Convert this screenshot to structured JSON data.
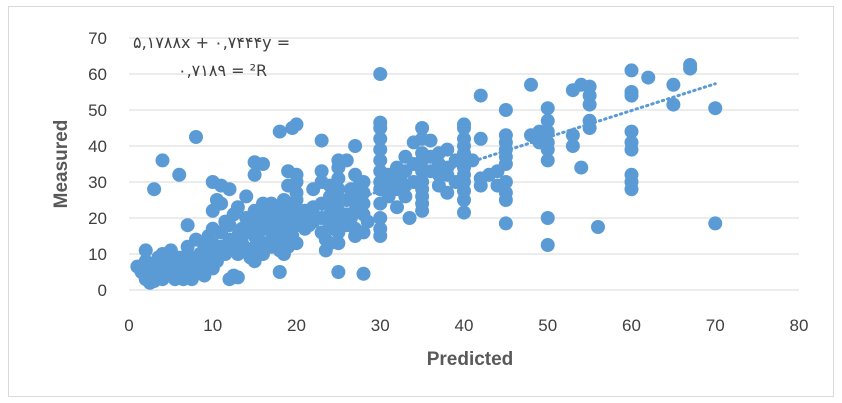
{
  "chart_data": {
    "type": "scatter",
    "title": "",
    "xlabel": "Predicted",
    "ylabel": "Measured",
    "xlim": [
      0,
      80
    ],
    "ylim": [
      0,
      70
    ],
    "x_ticks": [
      "0",
      "10",
      "20",
      "30",
      "40",
      "50",
      "60",
      "70",
      "80"
    ],
    "y_ticks": [
      "0",
      "10",
      "20",
      "30",
      "40",
      "50",
      "60",
      "70"
    ],
    "grid": "horizontal",
    "legend": "none",
    "point_color": "#5b9bd5",
    "trendline": {
      "type": "linear",
      "style": "dotted",
      "slope": 0.7444,
      "intercept": 5.1788,
      "x_range": [
        3,
        70
      ],
      "equation_text_1": "۵,۱۷۸۸x + ۰,۷۴۴۴y =",
      "equation_text_2": "۰,۷۱۸۹ = ²R"
    },
    "series": [
      {
        "points": [
          [
            1,
            6.5
          ],
          [
            1.5,
            5
          ],
          [
            2,
            3
          ],
          [
            2,
            8
          ],
          [
            2,
            11
          ],
          [
            2.5,
            2
          ],
          [
            2.5,
            4.5
          ],
          [
            3,
            6
          ],
          [
            3,
            28
          ],
          [
            3,
            2.5
          ],
          [
            3.5,
            9
          ],
          [
            3.5,
            5
          ],
          [
            4,
            7.5
          ],
          [
            4,
            3
          ],
          [
            4,
            10
          ],
          [
            4,
            36
          ],
          [
            4.5,
            6
          ],
          [
            5,
            4
          ],
          [
            5,
            8.5
          ],
          [
            5,
            11
          ],
          [
            5.5,
            3
          ],
          [
            5.5,
            6.5
          ],
          [
            6,
            5
          ],
          [
            6,
            9
          ],
          [
            6,
            32
          ],
          [
            6.5,
            3
          ],
          [
            6.5,
            7
          ],
          [
            7,
            4
          ],
          [
            7,
            10
          ],
          [
            7,
            12
          ],
          [
            7,
            18
          ],
          [
            7.5,
            6
          ],
          [
            7.5,
            3
          ],
          [
            8,
            8
          ],
          [
            8,
            14
          ],
          [
            8,
            42.5
          ],
          [
            8.5,
            5
          ],
          [
            8.5,
            10
          ],
          [
            9,
            7
          ],
          [
            9,
            12
          ],
          [
            9,
            4
          ],
          [
            9.5,
            9
          ],
          [
            9.5,
            15
          ],
          [
            10,
            6
          ],
          [
            10,
            10
          ],
          [
            10,
            13
          ],
          [
            10,
            17
          ],
          [
            10,
            22
          ],
          [
            10,
            30
          ],
          [
            10.5,
            8
          ],
          [
            10.5,
            25
          ],
          [
            11,
            12
          ],
          [
            11,
            16
          ],
          [
            11,
            24
          ],
          [
            11,
            29
          ],
          [
            11.5,
            10
          ],
          [
            11.5,
            19
          ],
          [
            12,
            3
          ],
          [
            12,
            14
          ],
          [
            12,
            18
          ],
          [
            12,
            28
          ],
          [
            12.5,
            4
          ],
          [
            12.5,
            12
          ],
          [
            12.5,
            21
          ],
          [
            13,
            10
          ],
          [
            13,
            15
          ],
          [
            13,
            3.5
          ],
          [
            13,
            23
          ],
          [
            13.5,
            13
          ],
          [
            13.5,
            17
          ],
          [
            14,
            11
          ],
          [
            14,
            16
          ],
          [
            14,
            20
          ],
          [
            14,
            26
          ],
          [
            14.5,
            9
          ],
          [
            14.5,
            18
          ],
          [
            15,
            8
          ],
          [
            15,
            12
          ],
          [
            15,
            15
          ],
          [
            15,
            22
          ],
          [
            15,
            32
          ],
          [
            15,
            35.5
          ],
          [
            15.5,
            14
          ],
          [
            15.5,
            19
          ],
          [
            16,
            10
          ],
          [
            16,
            17
          ],
          [
            16,
            20
          ],
          [
            16,
            24
          ],
          [
            16,
            35
          ],
          [
            16.5,
            13
          ],
          [
            16.5,
            22
          ],
          [
            17,
            12
          ],
          [
            17,
            16
          ],
          [
            17,
            19
          ],
          [
            17,
            24
          ],
          [
            17.5,
            15
          ],
          [
            17.5,
            21
          ],
          [
            18,
            5
          ],
          [
            18,
            11
          ],
          [
            18,
            14
          ],
          [
            18,
            18
          ],
          [
            18,
            22
          ],
          [
            18,
            44
          ],
          [
            18.5,
            10
          ],
          [
            18.5,
            16
          ],
          [
            18.5,
            25
          ],
          [
            19,
            12
          ],
          [
            19,
            17
          ],
          [
            19,
            20
          ],
          [
            19,
            29
          ],
          [
            19,
            33
          ],
          [
            19.5,
            15
          ],
          [
            19.5,
            23
          ],
          [
            19.5,
            45
          ],
          [
            20,
            13
          ],
          [
            20,
            18
          ],
          [
            20,
            21
          ],
          [
            20,
            25
          ],
          [
            20,
            27
          ],
          [
            20,
            30
          ],
          [
            20,
            32
          ],
          [
            20,
            46
          ],
          [
            21,
            17
          ],
          [
            21,
            20
          ],
          [
            21,
            22
          ],
          [
            21.5,
            18
          ],
          [
            22,
            19
          ],
          [
            22,
            21
          ],
          [
            22,
            23
          ],
          [
            22,
            28
          ],
          [
            23,
            16
          ],
          [
            23,
            20
          ],
          [
            23,
            24
          ],
          [
            23,
            30
          ],
          [
            23,
            33
          ],
          [
            23,
            41.5
          ],
          [
            23.5,
            11
          ],
          [
            23.5,
            14
          ],
          [
            24,
            13
          ],
          [
            24,
            18
          ],
          [
            24,
            21
          ],
          [
            24,
            26
          ],
          [
            24,
            29
          ],
          [
            24.5,
            17
          ],
          [
            24.5,
            24
          ],
          [
            25,
            5
          ],
          [
            25,
            13
          ],
          [
            25,
            16
          ],
          [
            25,
            19
          ],
          [
            25,
            22
          ],
          [
            25,
            25
          ],
          [
            25,
            28
          ],
          [
            25,
            31
          ],
          [
            25,
            34
          ],
          [
            25,
            36
          ],
          [
            26,
            18
          ],
          [
            26,
            21
          ],
          [
            26,
            25
          ],
          [
            26,
            36
          ],
          [
            26.5,
            20
          ],
          [
            26.5,
            28
          ],
          [
            27,
            15
          ],
          [
            27,
            17
          ],
          [
            27,
            22
          ],
          [
            27,
            26
          ],
          [
            27,
            32
          ],
          [
            27,
            40
          ],
          [
            27.5,
            24
          ],
          [
            27.5,
            29
          ],
          [
            28,
            4.5
          ],
          [
            28,
            16
          ],
          [
            28,
            21
          ],
          [
            28,
            24
          ],
          [
            28,
            27
          ],
          [
            28,
            30
          ],
          [
            28.5,
            19
          ],
          [
            30,
            15
          ],
          [
            30,
            17
          ],
          [
            30,
            20
          ],
          [
            30,
            24
          ],
          [
            30,
            28
          ],
          [
            30,
            30
          ],
          [
            30,
            33
          ],
          [
            30,
            36
          ],
          [
            30,
            39
          ],
          [
            30,
            42
          ],
          [
            30,
            45
          ],
          [
            30,
            46.5
          ],
          [
            30,
            60
          ],
          [
            31,
            26
          ],
          [
            31,
            29
          ],
          [
            31,
            32
          ],
          [
            32,
            23
          ],
          [
            32,
            28
          ],
          [
            32,
            31
          ],
          [
            32,
            34
          ],
          [
            32.5,
            30
          ],
          [
            33,
            26
          ],
          [
            33,
            29
          ],
          [
            33,
            33
          ],
          [
            33,
            37
          ],
          [
            33.5,
            20
          ],
          [
            34,
            30
          ],
          [
            34,
            35
          ],
          [
            34,
            41
          ],
          [
            35,
            22
          ],
          [
            35,
            24
          ],
          [
            35,
            26
          ],
          [
            35,
            28
          ],
          [
            35,
            30
          ],
          [
            35,
            33
          ],
          [
            35,
            36
          ],
          [
            35,
            38
          ],
          [
            35,
            42
          ],
          [
            35,
            45
          ],
          [
            36,
            33
          ],
          [
            36,
            37
          ],
          [
            36,
            41.5
          ],
          [
            37,
            29
          ],
          [
            37,
            32
          ],
          [
            37,
            35
          ],
          [
            37,
            38
          ],
          [
            38,
            27
          ],
          [
            38,
            32
          ],
          [
            38,
            34
          ],
          [
            38,
            39
          ],
          [
            39,
            30
          ],
          [
            39,
            36
          ],
          [
            40,
            21.5
          ],
          [
            40,
            25
          ],
          [
            40,
            27.5
          ],
          [
            40,
            30
          ],
          [
            40,
            32
          ],
          [
            40,
            34
          ],
          [
            40,
            36
          ],
          [
            40,
            38
          ],
          [
            40,
            40
          ],
          [
            40,
            42
          ],
          [
            40,
            45
          ],
          [
            40,
            46
          ],
          [
            41,
            36
          ],
          [
            42,
            29
          ],
          [
            42,
            31
          ],
          [
            42,
            42
          ],
          [
            42,
            54
          ],
          [
            43,
            32
          ],
          [
            44,
            29
          ],
          [
            44,
            33
          ],
          [
            45,
            18.5
          ],
          [
            45,
            25
          ],
          [
            45,
            27
          ],
          [
            45,
            30
          ],
          [
            45,
            35
          ],
          [
            45,
            37
          ],
          [
            45,
            39
          ],
          [
            45,
            41
          ],
          [
            45,
            43
          ],
          [
            45,
            50
          ],
          [
            48,
            43
          ],
          [
            48,
            57
          ],
          [
            49,
            41
          ],
          [
            49,
            44
          ],
          [
            50,
            12.5
          ],
          [
            50,
            20
          ],
          [
            50,
            36
          ],
          [
            50,
            39
          ],
          [
            50,
            41
          ],
          [
            50,
            44
          ],
          [
            50,
            47
          ],
          [
            50,
            50.5
          ],
          [
            53,
            40
          ],
          [
            53,
            43
          ],
          [
            53,
            55.5
          ],
          [
            54,
            34
          ],
          [
            54,
            57
          ],
          [
            55,
            45
          ],
          [
            55,
            47
          ],
          [
            55,
            51.5
          ],
          [
            55,
            54
          ],
          [
            55,
            56.5
          ],
          [
            56,
            17.5
          ],
          [
            60,
            28
          ],
          [
            60,
            30
          ],
          [
            60,
            32
          ],
          [
            60,
            39
          ],
          [
            60,
            41
          ],
          [
            60,
            44
          ],
          [
            60,
            54
          ],
          [
            60,
            55
          ],
          [
            60,
            61
          ],
          [
            62,
            59
          ],
          [
            65,
            51.5
          ],
          [
            65,
            57
          ],
          [
            67,
            61.5
          ],
          [
            67,
            62.5
          ],
          [
            70,
            18.5
          ],
          [
            70,
            50.5
          ]
        ]
      }
    ]
  }
}
